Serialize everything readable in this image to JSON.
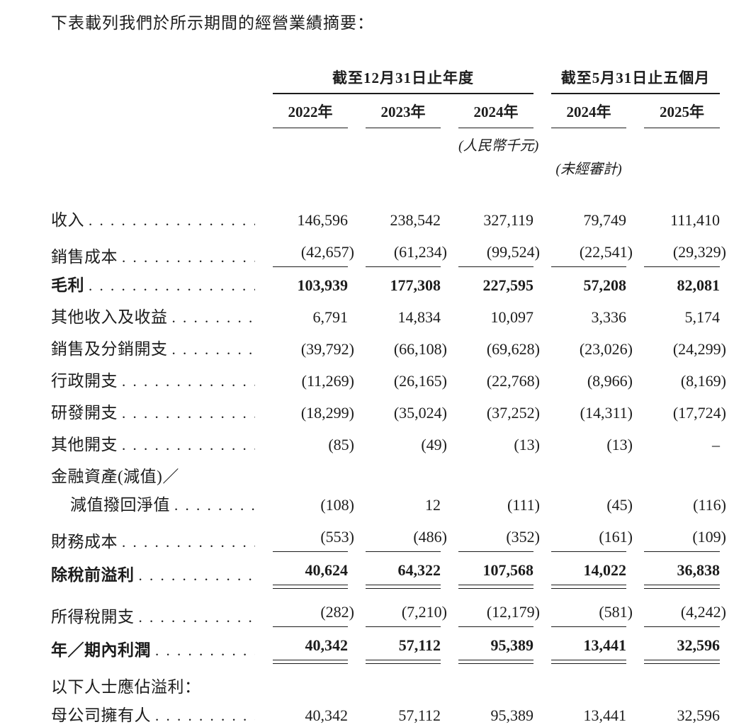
{
  "intro": "下表載列我們於所示期間的經營業績摘要：",
  "table": {
    "col_groups": [
      {
        "label": "截至12月31日止年度"
      },
      {
        "label": "截至5月31日止五個月"
      }
    ],
    "year_headers": [
      "2022年",
      "2023年",
      "2024年",
      "2024年",
      "2025年"
    ],
    "unit_note": "(人民幣千元)",
    "audit_note": "(未經審計)",
    "rows": [
      {
        "name": "revenue",
        "label": "收入",
        "values": [
          "146,596",
          "238,542",
          "327,119",
          "79,749",
          "111,410"
        ]
      },
      {
        "name": "cost-of-sales",
        "label": "銷售成本",
        "rule": "single",
        "values": [
          "(42,657)",
          "(61,234)",
          "(99,524)",
          "(22,541)",
          "(29,329)"
        ]
      },
      {
        "name": "gross-profit",
        "label": "毛利",
        "bold": true,
        "values": [
          "103,939",
          "177,308",
          "227,595",
          "57,208",
          "82,081"
        ]
      },
      {
        "name": "other-income-and-gains",
        "label": "其他收入及收益",
        "values": [
          "6,791",
          "14,834",
          "10,097",
          "3,336",
          "5,174"
        ]
      },
      {
        "name": "selling-and-distribution-expenses",
        "label": "銷售及分銷開支",
        "values": [
          "(39,792)",
          "(66,108)",
          "(69,628)",
          "(23,026)",
          "(24,299)"
        ]
      },
      {
        "name": "administrative-expenses",
        "label": "行政開支",
        "values": [
          "(11,269)",
          "(26,165)",
          "(22,768)",
          "(8,966)",
          "(8,169)"
        ]
      },
      {
        "name": "rd-expenses",
        "label": "研發開支",
        "values": [
          "(18,299)",
          "(35,024)",
          "(37,252)",
          "(14,311)",
          "(17,724)"
        ]
      },
      {
        "name": "other-expenses",
        "label": "其他開支",
        "values": [
          "(85)",
          "(49)",
          "(13)",
          "(13)",
          "–"
        ]
      },
      {
        "name": "financial-assets-impairment-caption",
        "label": "金融資產(減值)／",
        "dots": false,
        "tight": true,
        "values": [
          "",
          "",
          "",
          "",
          ""
        ]
      },
      {
        "name": "impairment-reversal-net",
        "label": "減值撥回淨值",
        "indent": true,
        "values": [
          "(108)",
          "12",
          "(111)",
          "(45)",
          "(116)"
        ]
      },
      {
        "name": "finance-costs",
        "label": "財務成本",
        "rule": "single",
        "values": [
          "(553)",
          "(486)",
          "(352)",
          "(161)",
          "(109)"
        ]
      },
      {
        "name": "profit-before-tax",
        "label": "除稅前溢利",
        "bold": true,
        "rule": "double",
        "values": [
          "40,624",
          "64,322",
          "107,568",
          "14,022",
          "36,838"
        ]
      },
      {
        "name": "income-tax-expense",
        "label": "所得稅開支",
        "rule": "single",
        "values": [
          "(282)",
          "(7,210)",
          "(12,179)",
          "(581)",
          "(4,242)"
        ]
      },
      {
        "name": "profit-for-the-year-period",
        "label": "年／期內利潤",
        "bold": true,
        "rule": "double",
        "values": [
          "40,342",
          "57,112",
          "95,389",
          "13,441",
          "32,596"
        ]
      },
      {
        "name": "profit-attributable-to-caption",
        "label": "以下人士應佔溢利：",
        "dots": false,
        "tight": true,
        "values": [
          "",
          "",
          "",
          "",
          ""
        ]
      },
      {
        "name": "owners-of-the-parent",
        "label": "母公司擁有人",
        "values": [
          "40,342",
          "57,112",
          "95,389",
          "13,441",
          "32,596"
        ]
      }
    ]
  }
}
